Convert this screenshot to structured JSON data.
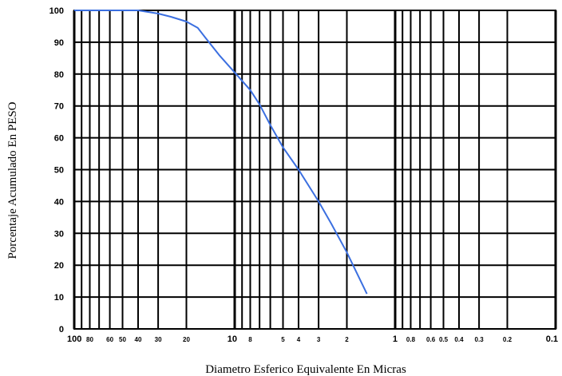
{
  "chart_data": {
    "type": "line",
    "title": "",
    "xlabel": "Diametro Esferico Equivalente En Micras",
    "ylabel": "Porcentaje Acumulado En PESO",
    "x_scale": "log",
    "x_reversed": true,
    "xlim": [
      100,
      0.1
    ],
    "ylim": [
      0,
      100
    ],
    "grid": true,
    "line_color": "#3b6fe0",
    "x_ticks": [
      {
        "value": 100,
        "label": "100",
        "major": true
      },
      {
        "value": 80,
        "label": "80",
        "major": false
      },
      {
        "value": 60,
        "label": "60",
        "major": false
      },
      {
        "value": 50,
        "label": "50",
        "major": false
      },
      {
        "value": 40,
        "label": "40",
        "major": false
      },
      {
        "value": 30,
        "label": "30",
        "major": false
      },
      {
        "value": 20,
        "label": "20",
        "major": false
      },
      {
        "value": 10,
        "label": "10",
        "major": true
      },
      {
        "value": 8,
        "label": "8",
        "major": false
      },
      {
        "value": 5,
        "label": "5",
        "major": false
      },
      {
        "value": 4,
        "label": "4",
        "major": false
      },
      {
        "value": 3,
        "label": "3",
        "major": false
      },
      {
        "value": 2,
        "label": "2",
        "major": false
      },
      {
        "value": 1,
        "label": "1",
        "major": true
      },
      {
        "value": 0.8,
        "label": "0.8",
        "major": false
      },
      {
        "value": 0.6,
        "label": "0.6",
        "major": false
      },
      {
        "value": 0.5,
        "label": "0.5",
        "major": false
      },
      {
        "value": 0.4,
        "label": "0.4",
        "major": false
      },
      {
        "value": 0.3,
        "label": "0.3",
        "major": false
      },
      {
        "value": 0.2,
        "label": "0.2",
        "major": false
      },
      {
        "value": 0.1,
        "label": "0.1",
        "major": true
      }
    ],
    "x_grid_values": [
      100,
      90,
      80,
      70,
      60,
      50,
      40,
      30,
      20,
      10,
      9,
      8,
      7,
      6,
      5,
      4,
      3,
      2,
      1,
      0.9,
      0.8,
      0.7,
      0.6,
      0.5,
      0.4,
      0.3,
      0.2,
      0.1
    ],
    "y_ticks": [
      0,
      10,
      20,
      30,
      40,
      50,
      60,
      70,
      80,
      90,
      100
    ],
    "series": [
      {
        "x": [
          100,
          60,
          40,
          30,
          25,
          20,
          17,
          15,
          12.5,
          10,
          8,
          7,
          6,
          5,
          4,
          3,
          2.5,
          2,
          1.5
        ],
        "y": [
          100,
          100,
          100,
          99,
          98,
          96.5,
          94.5,
          91,
          86,
          80.5,
          75,
          70.5,
          64,
          57,
          50,
          40,
          33,
          24,
          11
        ]
      }
    ]
  }
}
